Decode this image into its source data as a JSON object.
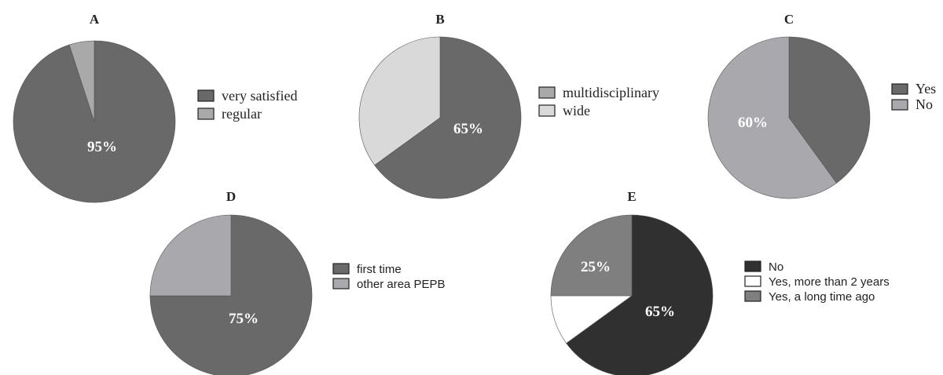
{
  "chart_data": [
    {
      "type": "pie",
      "title": "A",
      "slices": [
        {
          "label": "very satisfied",
          "value": 95,
          "color": "#696969",
          "pct_label": "95%"
        },
        {
          "label": "regular",
          "value": 5,
          "color": "#a9a9a9",
          "pct_label": ""
        }
      ],
      "legend": [
        "very satisfied",
        "regular"
      ],
      "legend_placement": "right"
    },
    {
      "type": "pie",
      "title": "B",
      "slices": [
        {
          "label": "multidisciplinary",
          "value": 65,
          "color": "#696969",
          "pct_label": "65%"
        },
        {
          "label": "wide",
          "value": 35,
          "color": "#d9d9d9",
          "pct_label": ""
        }
      ],
      "legend": [
        "multidisciplinary",
        "wide"
      ],
      "legend_colors": [
        "#a9a9a9",
        "#d9d9d9"
      ],
      "legend_placement": "right"
    },
    {
      "type": "pie",
      "title": "C",
      "slices": [
        {
          "label": "Yes",
          "value": 40,
          "color": "#696969",
          "pct_label": ""
        },
        {
          "label": "No",
          "value": 60,
          "color": "#a9a9ad",
          "pct_label": "60%"
        }
      ],
      "legend": [
        "Yes",
        "No"
      ],
      "legend_placement": "right"
    },
    {
      "type": "pie",
      "title": "D",
      "slices": [
        {
          "label": "first time",
          "value": 75,
          "color": "#696969",
          "pct_label": "75%"
        },
        {
          "label": "other area PEPB",
          "value": 25,
          "color": "#a9a9ad",
          "pct_label": ""
        }
      ],
      "legend": [
        "first time",
        "other area PEPB"
      ],
      "legend_placement": "right"
    },
    {
      "type": "pie",
      "title": "E",
      "slices": [
        {
          "label": "No",
          "value": 65,
          "color": "#303030",
          "pct_label": "65%"
        },
        {
          "label": "Yes, more than 2 years",
          "value": 10,
          "color": "#ffffff",
          "pct_label": ""
        },
        {
          "label": "Yes, a long time ago",
          "value": 25,
          "color": "#7f7f7f",
          "pct_label": "25%"
        }
      ],
      "legend": [
        "No",
        "Yes, more than 2 years",
        "Yes, a long time ago"
      ],
      "legend_placement": "right"
    }
  ]
}
